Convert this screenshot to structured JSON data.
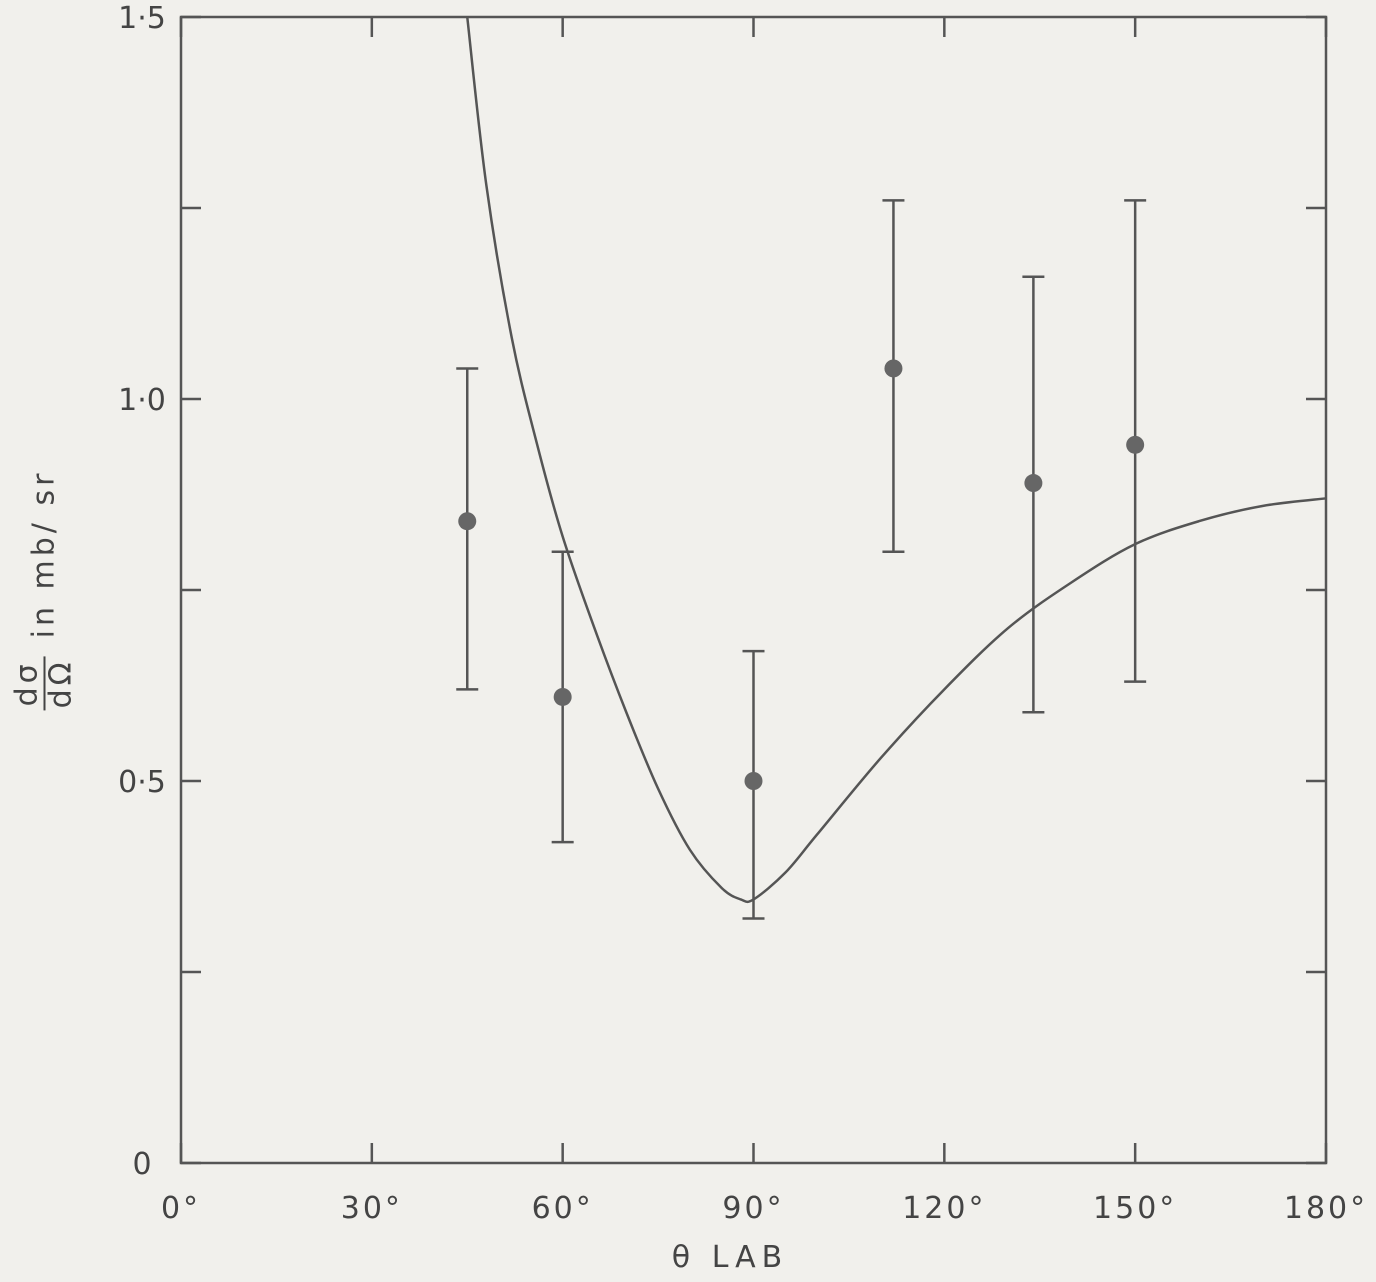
{
  "chart_data": {
    "type": "scatter",
    "x_ticks": [
      0,
      30,
      60,
      90,
      120,
      150,
      180
    ],
    "x_tick_labels": [
      "0°",
      "30°",
      "60°",
      "90°",
      "120°",
      "150°",
      "180°"
    ],
    "y_ticks": [
      0,
      0.5,
      1.0,
      1.5
    ],
    "y_tick_labels": [
      "0",
      "0·5",
      "1·0",
      "1·5"
    ],
    "y_minor_ticks": [
      0.25,
      0.75,
      1.25
    ],
    "xlim": [
      0,
      180
    ],
    "ylim": [
      0,
      1.5
    ],
    "xlabel": "θ LAB",
    "ylabel": {
      "numerator": "dσ",
      "denominator": "dΩ",
      "suffix": "in mb/ sr"
    },
    "points": [
      {
        "x": 45,
        "y": 0.84,
        "err_low": 0.62,
        "err_high": 1.04
      },
      {
        "x": 60,
        "y": 0.61,
        "err_low": 0.42,
        "err_high": 0.8
      },
      {
        "x": 90,
        "y": 0.5,
        "err_low": 0.32,
        "err_high": 0.67
      },
      {
        "x": 112,
        "y": 1.04,
        "err_low": 0.8,
        "err_high": 1.26
      },
      {
        "x": 134,
        "y": 0.89,
        "err_low": 0.59,
        "err_high": 1.16
      },
      {
        "x": 150,
        "y": 0.94,
        "err_low": 0.63,
        "err_high": 1.26
      }
    ],
    "curve": {
      "x": [
        45,
        48,
        52,
        56,
        60,
        65,
        70,
        75,
        80,
        85,
        88,
        90,
        95,
        100,
        110,
        120,
        130,
        140,
        150,
        160,
        170,
        180
      ],
      "y": [
        1.5,
        1.28,
        1.08,
        0.94,
        0.82,
        0.7,
        0.59,
        0.49,
        0.41,
        0.36,
        0.345,
        0.345,
        0.38,
        0.43,
        0.53,
        0.62,
        0.7,
        0.76,
        0.81,
        0.84,
        0.86,
        0.87
      ]
    },
    "grid": false,
    "legend": "none"
  },
  "colors": {
    "background": "#f1f0ec",
    "ink": "#555555",
    "marker": "#666666"
  }
}
